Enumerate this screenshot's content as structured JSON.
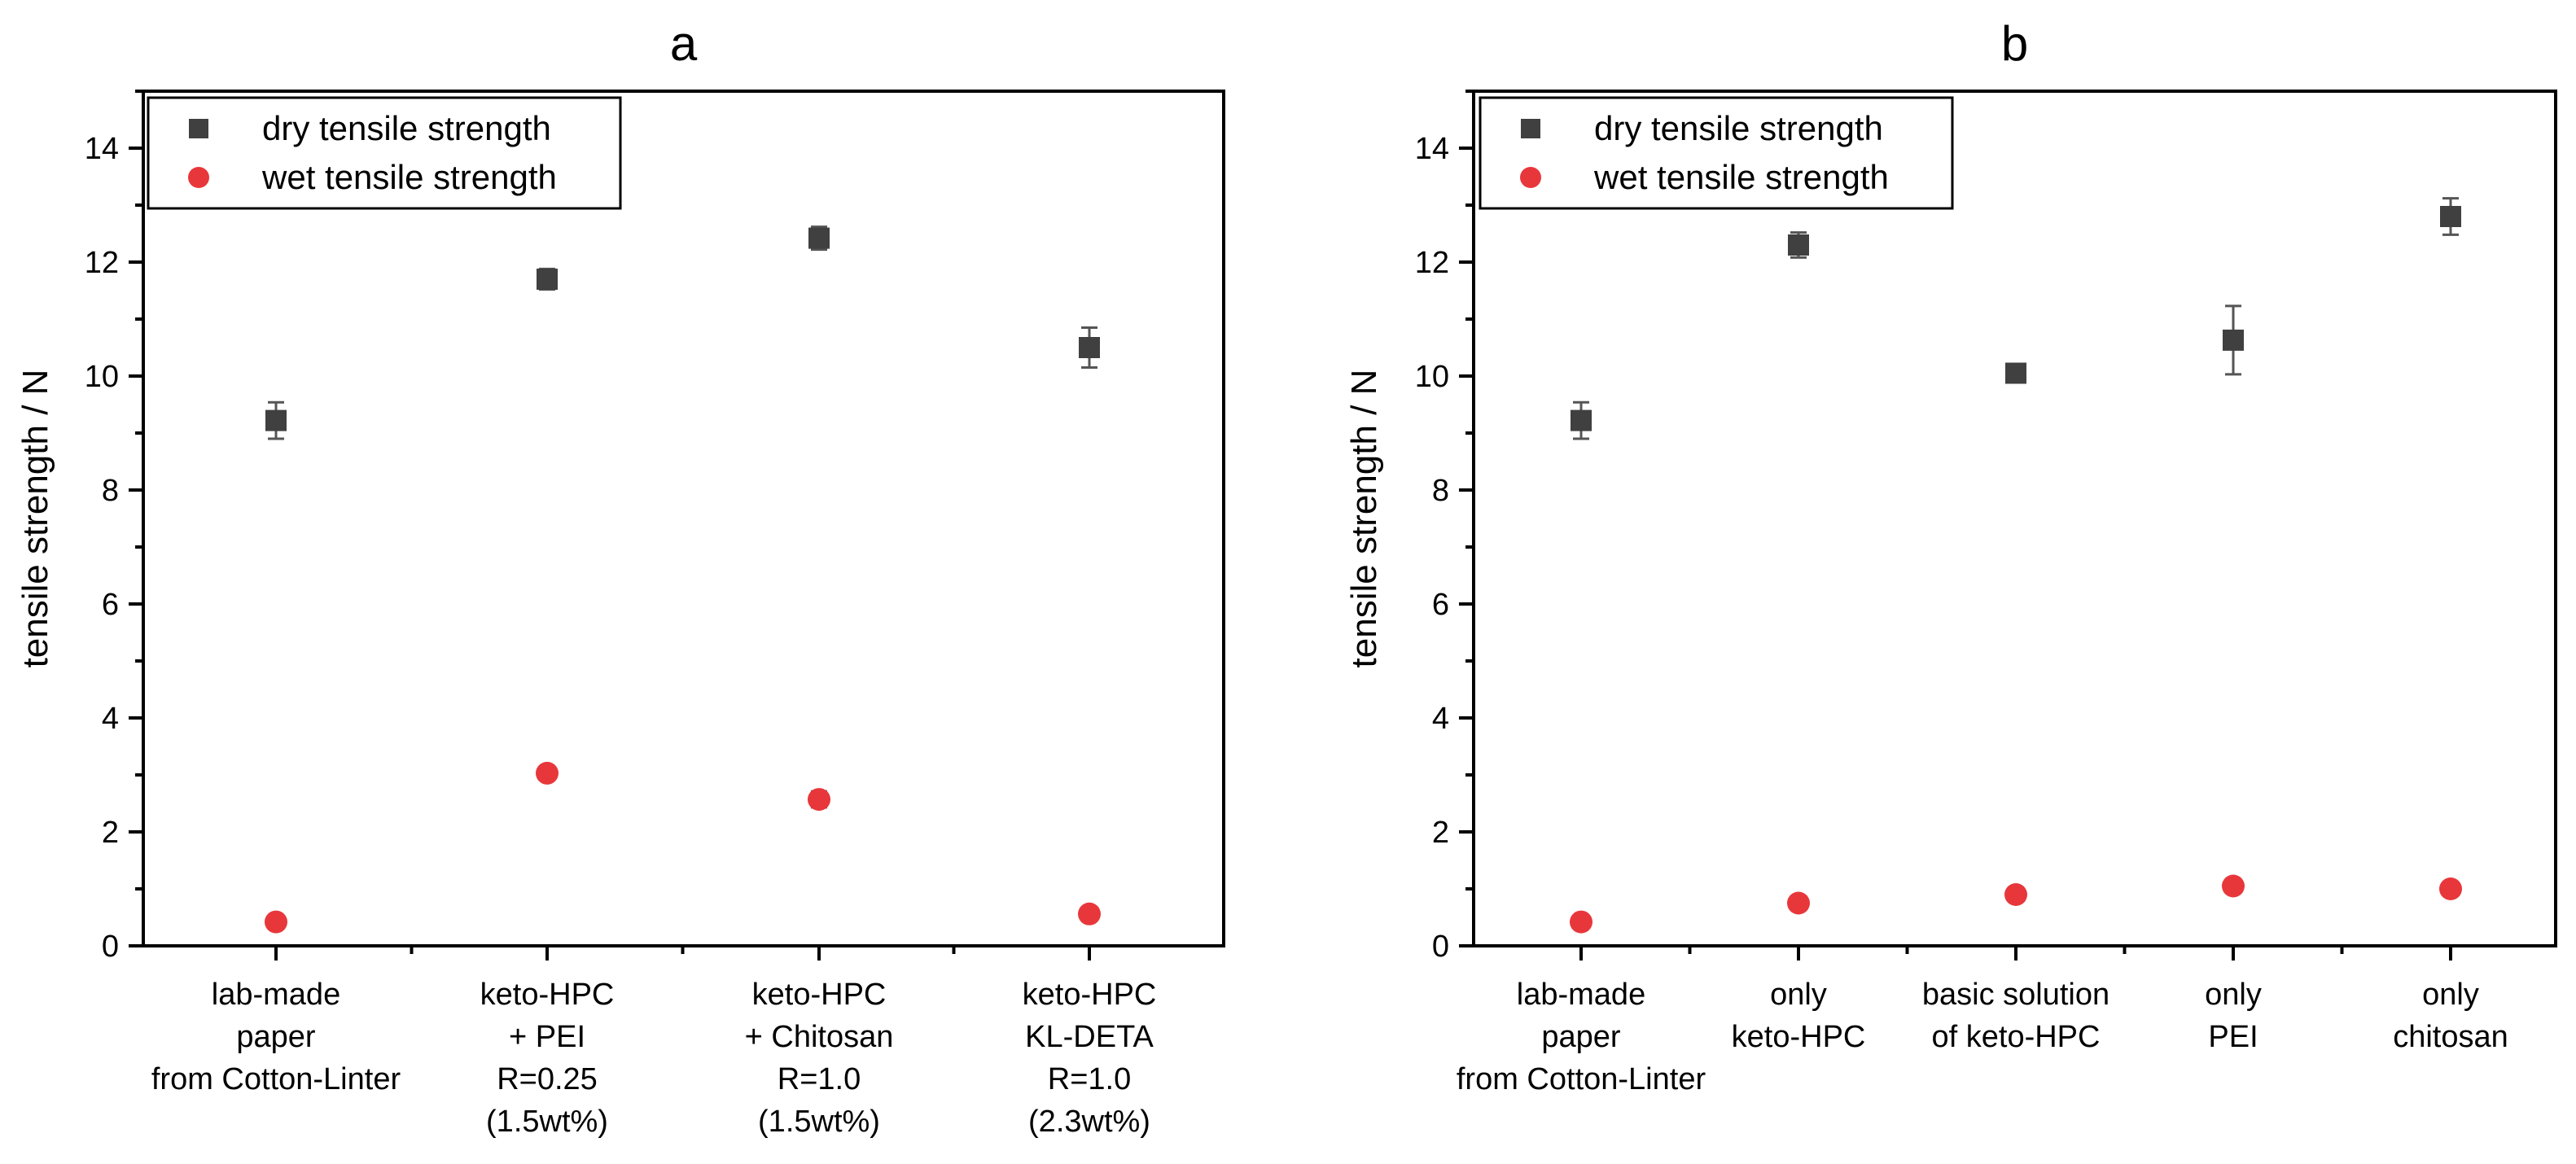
{
  "colors": {
    "dry": "#404040",
    "wet": "#e8373b",
    "axis": "#000000"
  },
  "chart_data": [
    {
      "id": "a",
      "type": "scatter",
      "title": "a",
      "ylabel": "tensile strength / N",
      "ylim": [
        0,
        15
      ],
      "yticks": [
        "0",
        "2",
        "4",
        "6",
        "8",
        "10",
        "12",
        "14"
      ],
      "categories": [
        [
          "lab-made",
          "paper",
          "from Cotton-Linter"
        ],
        [
          "keto-HPC",
          "+ PEI",
          "R=0.25",
          "(1.5wt%)"
        ],
        [
          "keto-HPC",
          "+ Chitosan",
          "R=1.0",
          "(1.5wt%)"
        ],
        [
          "keto-HPC",
          "KL-DETA",
          "R=1.0",
          "(2.3wt%)"
        ]
      ],
      "series": [
        {
          "name": "dry tensile strength",
          "marker": "square",
          "values": [
            9.22,
            11.7,
            12.42,
            10.5
          ],
          "errors": [
            0.32,
            0.18,
            0.2,
            0.35
          ]
        },
        {
          "name": "wet tensile strength",
          "marker": "circle",
          "values": [
            0.42,
            3.03,
            2.57,
            0.56
          ],
          "errors": [
            0.05,
            0.08,
            0.14,
            0.05
          ]
        }
      ],
      "legend": "top-left"
    },
    {
      "id": "b",
      "type": "scatter",
      "title": "b",
      "ylabel": "tensile strength / N",
      "ylim": [
        0,
        15
      ],
      "yticks": [
        "0",
        "2",
        "4",
        "6",
        "8",
        "10",
        "12",
        "14"
      ],
      "categories": [
        [
          "lab-made",
          "paper",
          "from Cotton-Linter"
        ],
        [
          "only",
          "keto-HPC"
        ],
        [
          "basic solution",
          "of keto-HPC"
        ],
        [
          "only",
          "PEI"
        ],
        [
          "only",
          "chitosan"
        ]
      ],
      "series": [
        {
          "name": "dry tensile strength",
          "marker": "square",
          "values": [
            9.22,
            12.3,
            10.05,
            10.63,
            12.8
          ],
          "errors": [
            0.32,
            0.22,
            0.05,
            0.6,
            0.32
          ]
        },
        {
          "name": "wet tensile strength",
          "marker": "circle",
          "values": [
            0.42,
            0.75,
            0.9,
            1.05,
            1.0
          ],
          "errors": [
            0.04,
            0.04,
            0.04,
            0.04,
            0.04
          ]
        }
      ],
      "legend": "top-left"
    }
  ]
}
